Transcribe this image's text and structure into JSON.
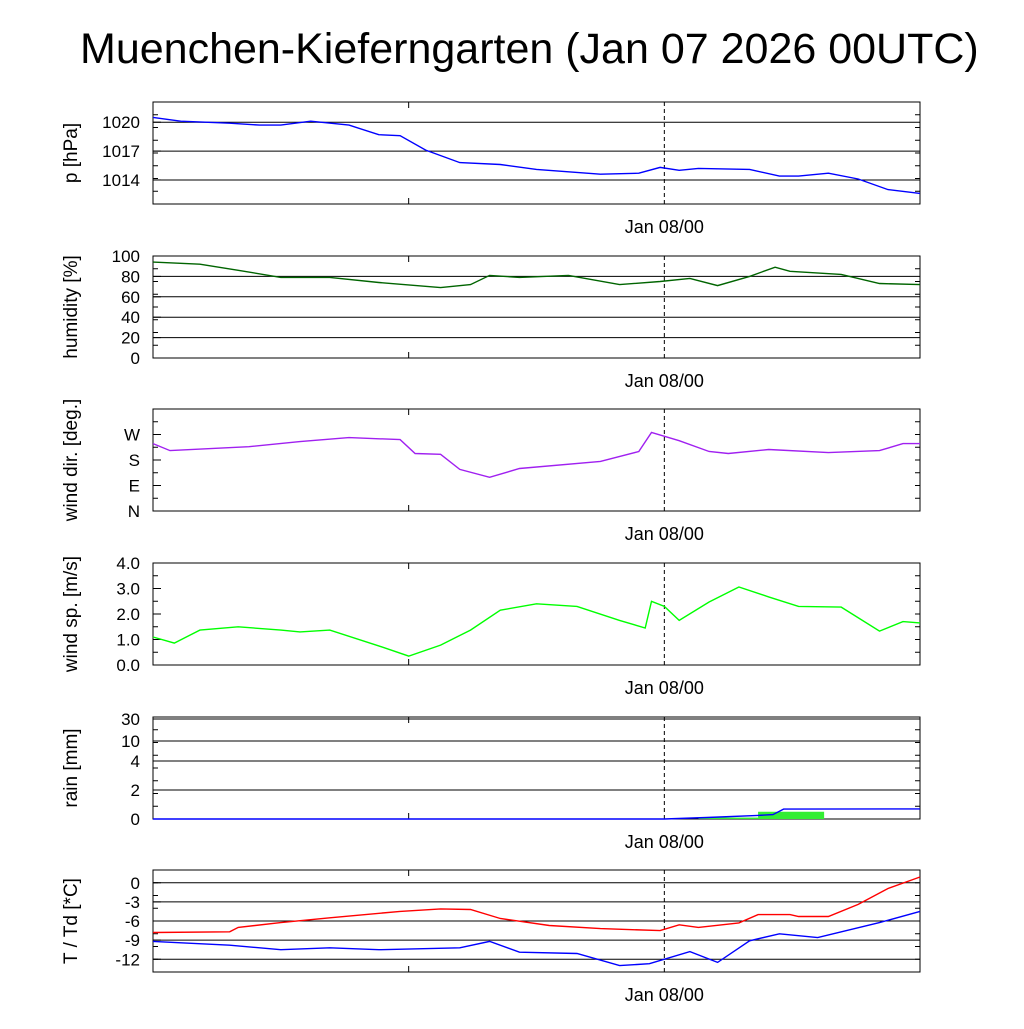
{
  "chart_data": [
    {
      "type": "line",
      "title": "Muenchen-Kieferngarten (Jan 07 2026 00UTC)",
      "ylabel": "p [hPa]",
      "xlabel": "Jan 08/00",
      "xlim_hours": [
        0,
        36
      ],
      "ylim": [
        1011.5,
        1022.1
      ],
      "yticks": [
        {
          "v": 1020,
          "l": "1020"
        },
        {
          "v": 1017,
          "l": "1017"
        },
        {
          "v": 1014,
          "l": "1014"
        }
      ],
      "grid": [
        1020,
        1017,
        1014
      ],
      "series": [
        {
          "name": "pressure",
          "color": "#0000ff",
          "x": [
            0,
            1.3,
            3.6,
            5,
            6,
            7.4,
            9.2,
            10.6,
            11.6,
            12.8,
            14.4,
            16.3,
            18,
            21,
            22.8,
            23.8,
            24.7,
            25.6,
            28,
            29.4,
            30.3,
            31.7,
            33.1,
            34.5,
            36
          ],
          "y": [
            1020.5,
            1020.1,
            1019.9,
            1019.7,
            1019.7,
            1020.1,
            1019.7,
            1018.7,
            1018.6,
            1017.1,
            1015.8,
            1015.6,
            1015.1,
            1014.6,
            1014.7,
            1015.3,
            1015,
            1015.2,
            1015.1,
            1014.4,
            1014.4,
            1014.7,
            1014.1,
            1013,
            1012.6
          ]
        }
      ]
    },
    {
      "type": "line",
      "ylabel": "humidity [%]",
      "xlabel": "Jan 08/00",
      "xlim_hours": [
        0,
        36
      ],
      "ylim": [
        0,
        100
      ],
      "yticks": [
        {
          "v": 100,
          "l": "100"
        },
        {
          "v": 80,
          "l": "80"
        },
        {
          "v": 60,
          "l": "60"
        },
        {
          "v": 40,
          "l": "40"
        },
        {
          "v": 20,
          "l": "20"
        },
        {
          "v": 0,
          "l": "0"
        }
      ],
      "grid": [
        80,
        60,
        40,
        20
      ],
      "series": [
        {
          "name": "humidity",
          "color": "#006400",
          "x": [
            0,
            2.2,
            4,
            6,
            8.3,
            10.6,
            13.5,
            14.9,
            15.8,
            17.2,
            19.5,
            21.9,
            23.8,
            25.2,
            26.5,
            28,
            29.2,
            29.9,
            32.3,
            34.1,
            36
          ],
          "y": [
            94,
            92,
            86,
            79,
            79,
            74,
            69,
            72,
            81,
            79,
            81,
            72,
            75,
            78,
            71,
            80,
            89,
            85,
            82,
            73,
            72
          ]
        }
      ]
    },
    {
      "type": "line",
      "ylabel": "wind dir. [deg.]",
      "xlabel": "Jan 08/00",
      "xlim_hours": [
        0,
        36
      ],
      "ylim": [
        0,
        360
      ],
      "yticks": [
        {
          "v": 270,
          "l": "W"
        },
        {
          "v": 180,
          "l": "S"
        },
        {
          "v": 90,
          "l": "E"
        },
        {
          "v": 0,
          "l": "N"
        }
      ],
      "grid": [],
      "series": [
        {
          "name": "wind direction",
          "color": "#a020f0",
          "x": [
            0,
            0.8,
            4.5,
            6.9,
            9.2,
            11.6,
            12.3,
            13.5,
            14.4,
            15.8,
            17.2,
            21,
            22.8,
            23.4,
            24.7,
            26.1,
            27,
            28.9,
            31.7,
            34.1,
            35.2,
            36
          ],
          "y": [
            238,
            213,
            227,
            245,
            259,
            252,
            203,
            200,
            147,
            119,
            150,
            175,
            210,
            277,
            248,
            210,
            203,
            217,
            206,
            213,
            238,
            238
          ]
        }
      ]
    },
    {
      "type": "line",
      "ylabel": "wind sp. [m/s]",
      "xlabel": "Jan 08/00",
      "xlim_hours": [
        0,
        36
      ],
      "ylim": [
        0,
        4
      ],
      "yticks": [
        {
          "v": 4,
          "l": "4.0"
        },
        {
          "v": 3,
          "l": "3.0"
        },
        {
          "v": 2,
          "l": "2.0"
        },
        {
          "v": 1,
          "l": "1.0"
        },
        {
          "v": 0,
          "l": "0.0"
        }
      ],
      "grid": [],
      "series": [
        {
          "name": "wind speed",
          "color": "#00ff00",
          "x": [
            0,
            1,
            2.2,
            4,
            6,
            6.9,
            8.3,
            10.6,
            12,
            13.5,
            14.9,
            16.3,
            18,
            19.9,
            21.9,
            23.1,
            23.4,
            24,
            24.7,
            26.1,
            27.5,
            28.9,
            30.3,
            32.3,
            34.1,
            35.2,
            36
          ],
          "y": [
            1.1,
            0.86,
            1.37,
            1.5,
            1.37,
            1.3,
            1.37,
            0.75,
            0.35,
            0.78,
            1.37,
            2.15,
            2.4,
            2.3,
            1.75,
            1.45,
            2.5,
            2.3,
            1.75,
            2.47,
            3.06,
            2.67,
            2.3,
            2.27,
            1.33,
            1.7,
            1.65
          ]
        }
      ]
    },
    {
      "type": "area",
      "ylabel": "rain [mm]",
      "xlabel": "Jan 08/00",
      "xlim_hours": [
        0,
        36
      ],
      "yscale": "nonlinear",
      "yticks": [
        {
          "v": 30,
          "l": "30"
        },
        {
          "v": 10,
          "l": "10"
        },
        {
          "v": 4,
          "l": "4"
        },
        {
          "v": 2,
          "l": "2"
        },
        {
          "v": 0,
          "l": "0"
        }
      ],
      "grid": [
        30,
        10,
        4,
        2
      ],
      "bars": {
        "name": "hourly rain",
        "color": "#33ee33",
        "items": [
          {
            "x0": 25.6,
            "x1": 28.4,
            "v": 0.1
          },
          {
            "x0": 28.4,
            "x1": 31.5,
            "v": 0.5
          }
        ]
      },
      "series": [
        {
          "name": "cumulative rain",
          "color": "#0000ff",
          "x": [
            0,
            24,
            26,
            28.4,
            29.1,
            29.6,
            36
          ],
          "y": [
            0,
            0,
            0.1,
            0.25,
            0.3,
            0.68,
            0.7
          ]
        }
      ]
    },
    {
      "type": "line",
      "ylabel": "T / Td [*C]",
      "xlabel": "Jan 08/00",
      "xlim_hours": [
        0,
        36
      ],
      "ylim": [
        -14,
        2
      ],
      "yticks": [
        {
          "v": 0,
          "l": "0"
        },
        {
          "v": -3,
          "l": "-3"
        },
        {
          "v": -6,
          "l": "-6"
        },
        {
          "v": -9,
          "l": "-9"
        },
        {
          "v": -12,
          "l": "-12"
        }
      ],
      "grid": [
        0,
        -3,
        -6,
        -9,
        -12
      ],
      "series": [
        {
          "name": "T",
          "color": "#ff0000",
          "x": [
            0,
            3.6,
            4,
            6,
            8.3,
            11.6,
            13.5,
            14.9,
            16.3,
            18.6,
            21,
            23.8,
            24.7,
            25.6,
            27.5,
            28.4,
            29.9,
            30.3,
            31.7,
            33.1,
            34.5,
            36
          ],
          "y": [
            -7.8,
            -7.7,
            -7,
            -6.25,
            -5.5,
            -4.5,
            -4.1,
            -4.2,
            -5.6,
            -6.7,
            -7.2,
            -7.5,
            -6.6,
            -7,
            -6.3,
            -5,
            -5,
            -5.3,
            -5.3,
            -3.4,
            -0.9,
            0.9
          ]
        },
        {
          "name": "Td",
          "color": "#0000ff",
          "x": [
            0,
            3.6,
            6,
            8.3,
            10.6,
            14.4,
            15.8,
            17.2,
            19.9,
            21.9,
            23.3,
            25.2,
            26.5,
            28,
            29.4,
            31.2,
            34.1,
            36
          ],
          "y": [
            -9.2,
            -9.8,
            -10.5,
            -10.2,
            -10.5,
            -10.2,
            -9.2,
            -10.9,
            -11.1,
            -13,
            -12.7,
            -10.8,
            -12.5,
            -9.1,
            -8,
            -8.6,
            -6.25,
            -4.5
          ]
        }
      ]
    }
  ],
  "title": "Muenchen-Kieferngarten (Jan 07 2026 00UTC)"
}
